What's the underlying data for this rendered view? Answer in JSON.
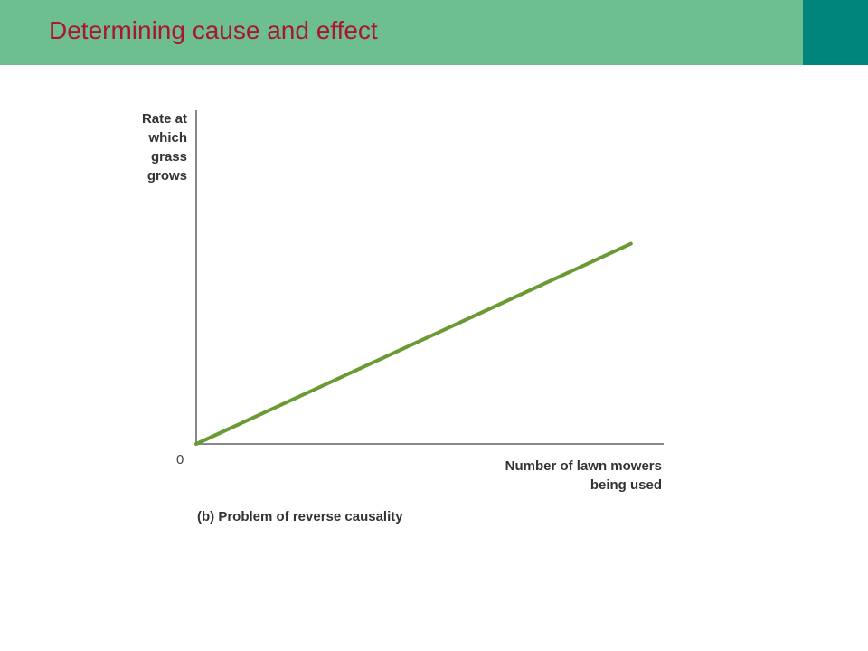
{
  "slide": {
    "title": "Determining cause and effect",
    "colors": {
      "header": "#6dbf92",
      "corner": "#00857a",
      "title": "#a8172f"
    }
  },
  "chart_data": {
    "type": "line",
    "title": "",
    "xlabel": "Number of lawn mowers\nbeing used",
    "ylabel": "Rate at\nwhich\ngrass\ngrows",
    "origin_label": "0",
    "caption": "(b) Problem of reverse causality",
    "xlim": [
      0,
      1
    ],
    "ylim": [
      0,
      1
    ],
    "grid": false,
    "series": [
      {
        "x": [
          0,
          0.93
        ],
        "y": [
          0,
          0.6
        ],
        "color": "#6a9a33"
      }
    ]
  }
}
